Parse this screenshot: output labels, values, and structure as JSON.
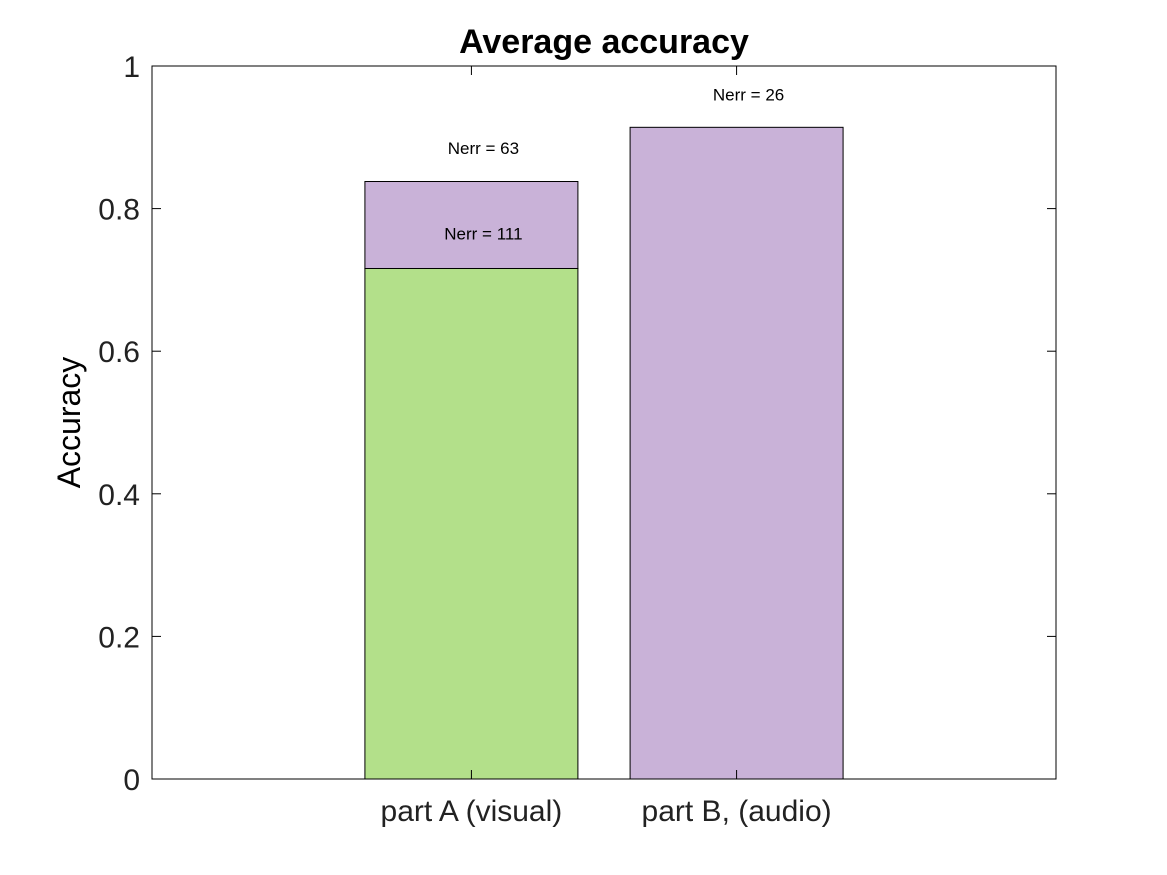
{
  "chart_data": {
    "type": "bar",
    "stacked": true,
    "title": "Average accuracy",
    "xlabel": "",
    "ylabel": "Accuracy",
    "ylim": [
      0,
      1
    ],
    "yticks": [
      "0",
      "0.2",
      "0.4",
      "0.6",
      "0.8",
      "1"
    ],
    "ytick_values": [
      0,
      0.2,
      0.4,
      0.6,
      0.8,
      1
    ],
    "categories": [
      "part A (visual)",
      "part B, (audio)"
    ],
    "grid": false,
    "colors": {
      "green": "#b3e08a",
      "purple": "#c9b2d8",
      "edge": "#000000",
      "axes": "#000000"
    },
    "segments": [
      [
        {
          "value": 0.716,
          "color": "green"
        },
        {
          "value": 0.122,
          "color": "purple"
        }
      ],
      [
        {
          "value": 0.914,
          "color": "purple"
        }
      ]
    ],
    "annotations": [
      {
        "text": "Nerr = 63",
        "x": "part A (visual)",
        "y": 0.885
      },
      {
        "text": "Nerr = 111",
        "x": "part A (visual)",
        "y": 0.765
      },
      {
        "text": "Nerr = 26",
        "x": "part B, (audio)",
        "y": 0.96
      }
    ]
  }
}
